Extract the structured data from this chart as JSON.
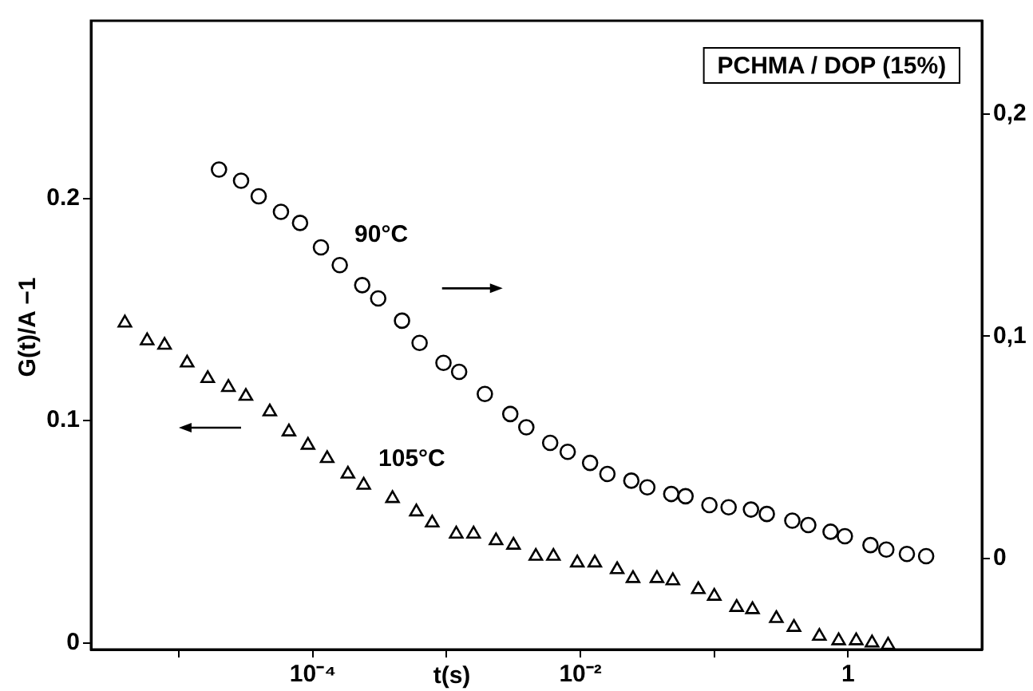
{
  "chart_data": {
    "type": "scatter",
    "title": "PCHMA / DOP (15%)",
    "xlabel": "t(s)",
    "ylabel": "G(t)/A −1",
    "log": "x",
    "grid": false,
    "legend": false,
    "xlim": [
      2.2e-06,
      10
    ],
    "xticks": [
      {
        "value": 1e-05,
        "label": null
      },
      {
        "value": 0.0001,
        "label": "10⁻⁴"
      },
      {
        "value": 0.001,
        "label": null
      },
      {
        "value": 0.01,
        "label": "10⁻²"
      },
      {
        "value": 0.1,
        "label": null
      },
      {
        "value": 1,
        "label": "1"
      }
    ],
    "ylim": [
      -0.003,
      0.28
    ],
    "yticks": [
      0,
      {
        "value": 0.1,
        "label": "0.1"
      },
      {
        "value": 0.2,
        "label": "0.2"
      }
    ],
    "y2lim": [
      -0.041,
      0.242
    ],
    "y2ticks": [
      0,
      {
        "value": 0.1,
        "label": "0,1"
      },
      {
        "value": 0.2,
        "label": "0,2"
      }
    ],
    "series": [
      {
        "name": "90°C",
        "axis": "y2",
        "marker": "circle",
        "color": "#000000",
        "x": [
          1.99e-05,
          2.91e-05,
          3.94e-05,
          5.78e-05,
          8.03e-05,
          0.000115,
          0.000159,
          0.000234,
          0.000308,
          0.000464,
          0.000628,
          0.000947,
          0.00124,
          0.00193,
          0.00299,
          0.00394,
          0.00594,
          0.00803,
          0.0118,
          0.0159,
          0.024,
          0.0316,
          0.0477,
          0.061,
          0.092,
          0.128,
          0.188,
          0.247,
          0.383,
          0.504,
          0.74,
          0.946,
          1.47,
          1.93,
          2.75,
          3.83
        ],
        "values": [
          0.175,
          0.17,
          0.163,
          0.156,
          0.151,
          0.14,
          0.132,
          0.123,
          0.117,
          0.107,
          0.097,
          0.088,
          0.084,
          0.074,
          0.065,
          0.059,
          0.052,
          0.048,
          0.043,
          0.038,
          0.035,
          0.032,
          0.029,
          0.028,
          0.024,
          0.023,
          0.022,
          0.02,
          0.017,
          0.015,
          0.012,
          0.01,
          0.006,
          0.004,
          0.002,
          0.001
        ]
      },
      {
        "name": "105°C",
        "axis": "y",
        "marker": "triangle",
        "color": "#000000",
        "x": [
          3.94e-06,
          5.78e-06,
          7.8e-06,
          1.15e-05,
          1.64e-05,
          2.34e-05,
          3.16e-05,
          4.77e-05,
          6.63e-05,
          9.2e-05,
          0.000128,
          0.000183,
          0.00024,
          0.000394,
          0.000594,
          0.00078,
          0.00118,
          0.00159,
          0.00234,
          0.00316,
          0.00464,
          0.00628,
          0.00947,
          0.0128,
          0.0188,
          0.0247,
          0.0373,
          0.049,
          0.076,
          0.1,
          0.147,
          0.193,
          0.291,
          0.394,
          0.61,
          0.85,
          1.15,
          1.51,
          1.99
        ],
        "values": [
          0.144,
          0.136,
          0.134,
          0.126,
          0.119,
          0.115,
          0.111,
          0.104,
          0.095,
          0.089,
          0.083,
          0.076,
          0.071,
          0.065,
          0.059,
          0.054,
          0.049,
          0.049,
          0.046,
          0.044,
          0.039,
          0.039,
          0.036,
          0.036,
          0.033,
          0.029,
          0.029,
          0.028,
          0.024,
          0.021,
          0.016,
          0.015,
          0.011,
          0.007,
          0.003,
          0.001,
          0.001,
          0,
          -0.001
        ]
      }
    ]
  }
}
